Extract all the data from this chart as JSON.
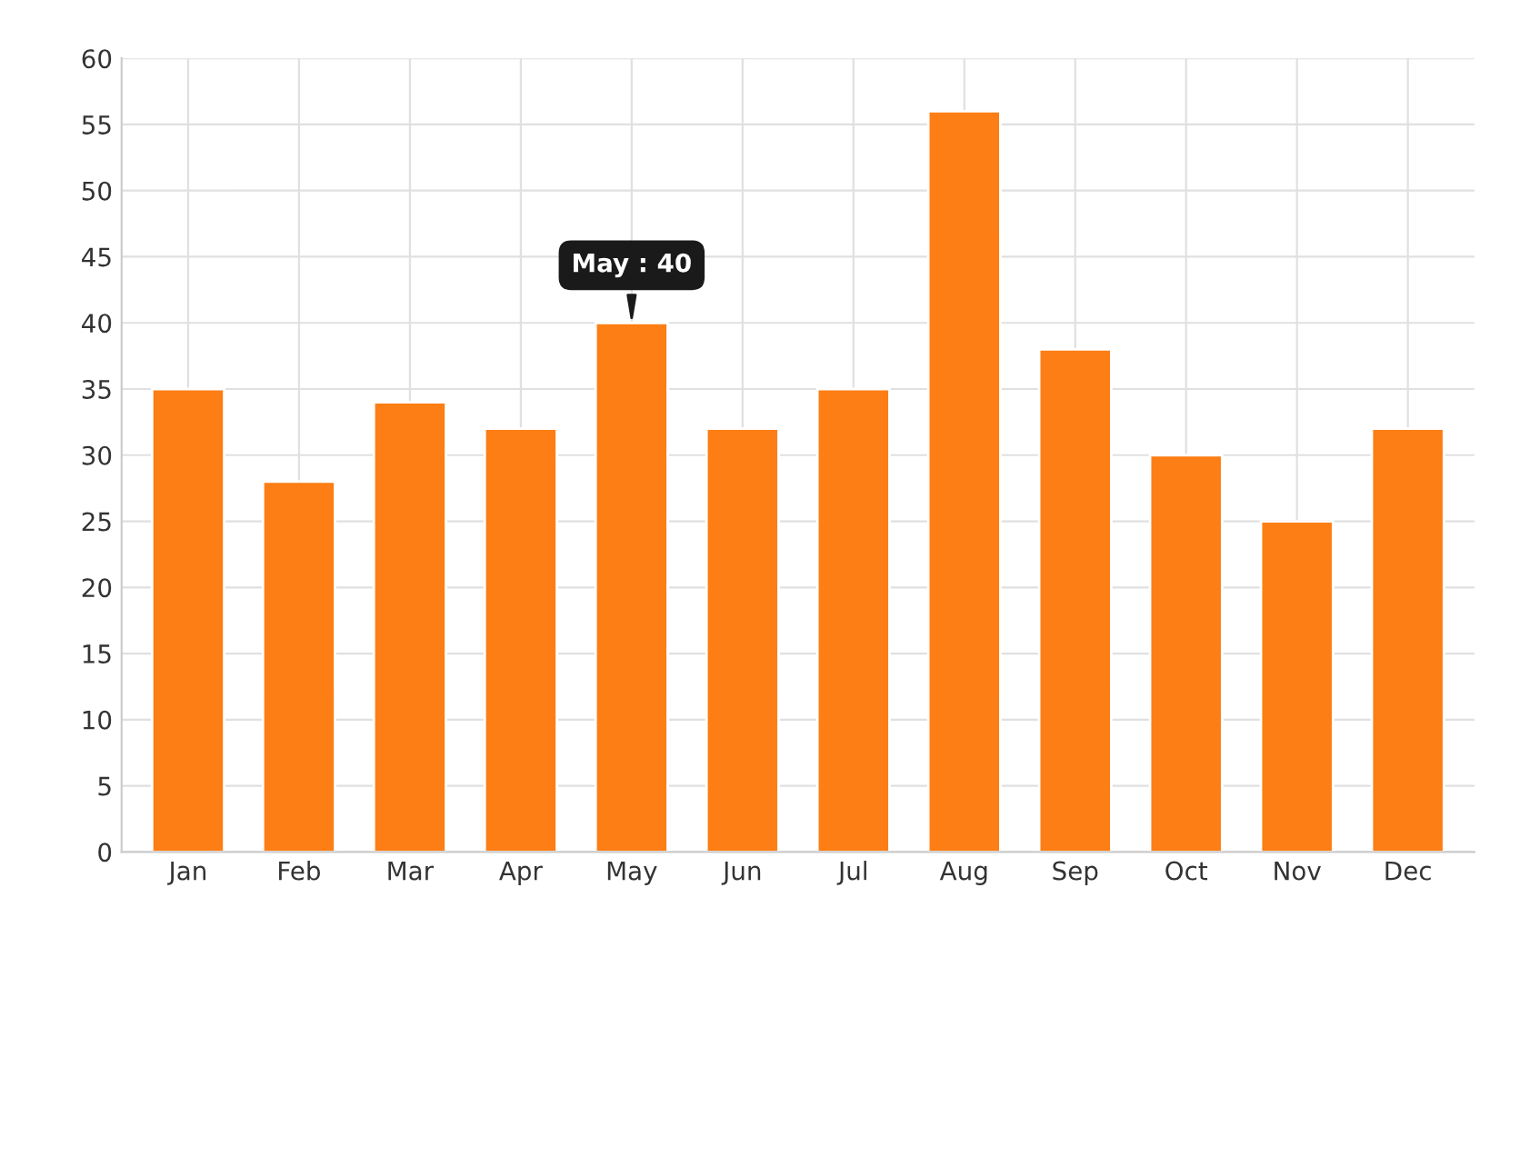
{
  "chart_data": {
    "type": "bar",
    "categories": [
      "Jan",
      "Feb",
      "Mar",
      "Apr",
      "May",
      "Jun",
      "Jul",
      "Aug",
      "Sep",
      "Oct",
      "Nov",
      "Dec"
    ],
    "values": [
      35,
      28,
      34,
      32,
      40,
      32,
      35,
      56,
      38,
      30,
      25,
      32
    ],
    "color": "#fd7e14",
    "ylim": [
      0,
      60
    ],
    "yticks": [
      0,
      5,
      10,
      15,
      20,
      25,
      30,
      35,
      40,
      45,
      50,
      55,
      60
    ],
    "grid": true,
    "annotations": [
      {
        "text": "May : 40",
        "x": "May",
        "y": 40
      }
    ]
  }
}
